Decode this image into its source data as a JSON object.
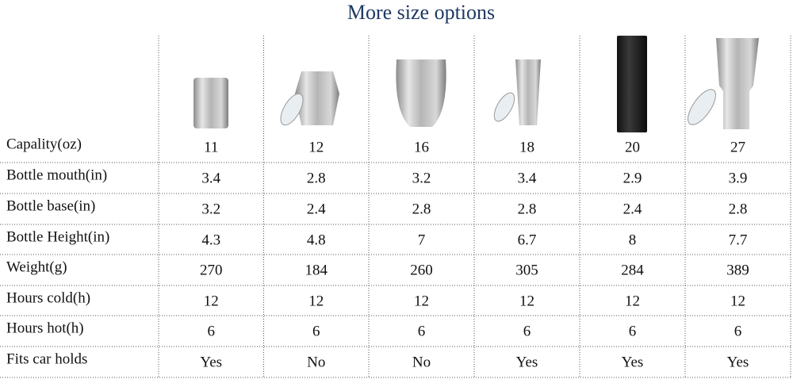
{
  "title": "More size options",
  "table": {
    "rows": [
      [
        "Capality(oz)",
        "11",
        "12",
        "16",
        "18",
        "20",
        "27"
      ],
      [
        "Bottle mouth(in)",
        "3.4",
        "2.8",
        "3.2",
        "3.4",
        "2.9",
        "3.9"
      ],
      [
        "Bottle base(in)",
        "3.2",
        "2.4",
        "2.8",
        "2.8",
        "2.4",
        "2.8"
      ],
      [
        "Bottle Height(in)",
        "4.3",
        "4.8",
        "7",
        "6.7",
        "8",
        "7.7"
      ],
      [
        "Weight(g)",
        "270",
        "184",
        "260",
        "305",
        "284",
        "389"
      ],
      [
        "Hours cold(h)",
        "12",
        "12",
        "12",
        "12",
        "12",
        "12"
      ],
      [
        "Hours hot(h)",
        "6",
        "6",
        "6",
        "6",
        "6",
        "6"
      ],
      [
        "Fits car holds",
        "Yes",
        "No",
        "No",
        "Yes",
        "Yes",
        "Yes"
      ]
    ]
  }
}
